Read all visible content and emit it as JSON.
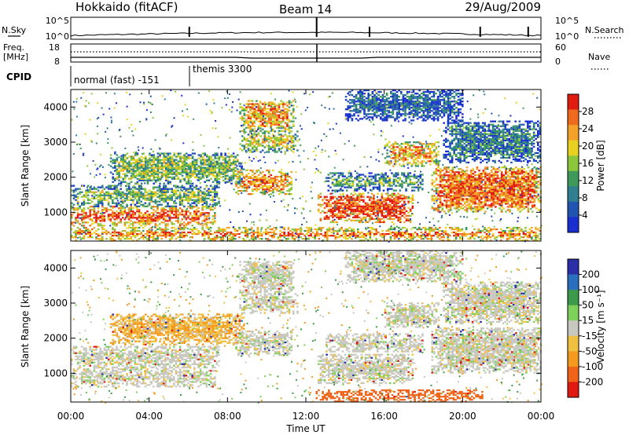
{
  "header": {
    "station": "Hokkaido (fitACF)",
    "beam": "Beam 14",
    "date": "29/Aug/2009"
  },
  "noise_panel": {
    "left_label": "N.Sky",
    "right_label": "N.Search",
    "ticks": [
      "10^5",
      "10^0"
    ],
    "spikes_hours": [
      6.05,
      12.55,
      15.25,
      20.9,
      23.35
    ]
  },
  "freq_panel": {
    "left_label_1": "Freq.",
    "left_label_2": "[MHz]",
    "left_ticks": [
      "18",
      "8"
    ],
    "right_ticks": [
      "60",
      "0"
    ],
    "right_label": "Nave"
  },
  "cpid": {
    "label": "CPID",
    "modes": [
      {
        "name": "normal (fast) -151",
        "start": 0,
        "end": 6.05
      },
      {
        "name": "themis 3300",
        "start": 6.05,
        "end": 24
      }
    ]
  },
  "chart_data": [
    {
      "type": "heatmap",
      "ylabel": "Slant Range [km]",
      "xlabel": "Time UT",
      "x_ticks": [
        "00:00",
        "04:00",
        "08:00",
        "12:00",
        "16:00",
        "20:00",
        "00:00"
      ],
      "xlim": [
        0,
        24
      ],
      "y_ticks": [
        1000,
        2000,
        3000,
        4000
      ],
      "ylim": [
        180,
        4500
      ],
      "colorbar": {
        "label": "Power [dB]",
        "ticks": [
          "4",
          "8",
          "12",
          "16",
          "20",
          "24",
          "28"
        ],
        "range": [
          0,
          30
        ]
      },
      "echo_bands": [
        {
          "t0": 0.0,
          "t1": 7.4,
          "r0": 600,
          "r1": 1150,
          "level": 26
        },
        {
          "t0": 0.0,
          "t1": 7.6,
          "r0": 1150,
          "r1": 1750,
          "level": 14
        },
        {
          "t0": 2.0,
          "t1": 8.8,
          "r0": 1800,
          "r1": 2700,
          "level": 14
        },
        {
          "t0": 8.4,
          "t1": 11.3,
          "r0": 1500,
          "r1": 2200,
          "level": 24
        },
        {
          "t0": 8.6,
          "t1": 11.6,
          "r0": 2700,
          "r1": 3300,
          "level": 18
        },
        {
          "t0": 8.6,
          "t1": 11.4,
          "r0": 3300,
          "r1": 4200,
          "level": 22
        },
        {
          "t0": 12.6,
          "t1": 17.4,
          "r0": 700,
          "r1": 1550,
          "level": 27
        },
        {
          "t0": 13.0,
          "t1": 18.0,
          "r0": 1600,
          "r1": 2100,
          "level": 12
        },
        {
          "t0": 16.0,
          "t1": 18.8,
          "r0": 2300,
          "r1": 3000,
          "level": 22
        },
        {
          "t0": 18.4,
          "t1": 24.0,
          "r0": 1000,
          "r1": 2300,
          "level": 25
        },
        {
          "t0": 19.0,
          "t1": 24.0,
          "r0": 2400,
          "r1": 3600,
          "level": 8
        },
        {
          "t0": 14.0,
          "t1": 20.0,
          "r0": 3600,
          "r1": 4500,
          "level": 6
        },
        {
          "t0": 0.0,
          "t1": 24.0,
          "r0": 180,
          "r1": 560,
          "level": 24
        }
      ]
    },
    {
      "type": "heatmap",
      "ylabel": "Slant Range [km]",
      "xlabel": "Time UT",
      "x_ticks": [
        "00:00",
        "04:00",
        "08:00",
        "12:00",
        "16:00",
        "20:00",
        "00:00"
      ],
      "xlim": [
        0,
        24
      ],
      "y_ticks": [
        1000,
        2000,
        3000,
        4000
      ],
      "ylim": [
        180,
        4500
      ],
      "colorbar": {
        "label": "Velocity [m s⁻¹]",
        "ticks": [
          "200",
          "100",
          "50",
          "15",
          "-15",
          "-50",
          "-100",
          "-200"
        ],
        "range": [
          -250,
          250
        ]
      },
      "echo_bands": [
        {
          "t0": 0.0,
          "t1": 7.4,
          "r0": 600,
          "r1": 1150,
          "level": 0
        },
        {
          "t0": 0.0,
          "t1": 7.6,
          "r0": 1150,
          "r1": 1750,
          "level": 0
        },
        {
          "t0": 2.0,
          "t1": 8.8,
          "r0": 1800,
          "r1": 2700,
          "level": -30
        },
        {
          "t0": 8.4,
          "t1": 11.3,
          "r0": 1500,
          "r1": 2200,
          "level": 0
        },
        {
          "t0": 8.6,
          "t1": 11.6,
          "r0": 2700,
          "r1": 3300,
          "level": 0
        },
        {
          "t0": 8.6,
          "t1": 11.4,
          "r0": 3300,
          "r1": 4200,
          "level": 0
        },
        {
          "t0": 12.6,
          "t1": 17.4,
          "r0": 700,
          "r1": 1550,
          "level": 0
        },
        {
          "t0": 13.0,
          "t1": 18.0,
          "r0": 1600,
          "r1": 2100,
          "level": 0
        },
        {
          "t0": 16.0,
          "t1": 18.8,
          "r0": 2300,
          "r1": 3000,
          "level": 0
        },
        {
          "t0": 18.4,
          "t1": 24.0,
          "r0": 1000,
          "r1": 2300,
          "level": 0
        },
        {
          "t0": 19.0,
          "t1": 24.0,
          "r0": 2400,
          "r1": 3600,
          "level": 0
        },
        {
          "t0": 14.0,
          "t1": 20.0,
          "r0": 3600,
          "r1": 4500,
          "level": 0
        },
        {
          "t0": 12.5,
          "t1": 21.0,
          "r0": 180,
          "r1": 520,
          "level": -120
        }
      ]
    }
  ]
}
